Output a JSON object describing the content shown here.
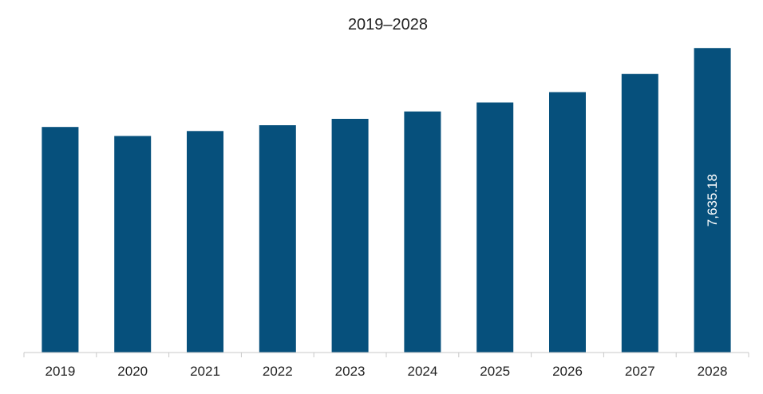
{
  "chart_data": {
    "type": "bar",
    "title": "2019–2028",
    "xlabel": "",
    "ylabel": "",
    "categories": [
      "2019",
      "2020",
      "2021",
      "2022",
      "2023",
      "2024",
      "2025",
      "2026",
      "2027",
      "2028"
    ],
    "values": [
      5656,
      5430,
      5554,
      5700,
      5860,
      6045,
      6270,
      6530,
      6985,
      7635.18
    ],
    "data_labels": [
      {
        "category": "2028",
        "text": "7,635.18"
      }
    ],
    "ylim": [
      0,
      8000
    ],
    "grid": false,
    "legend": "none",
    "colors": {
      "bar": "#06507c",
      "axis": "#c8c8c8",
      "text": "#222222",
      "data_label": "#ffffff"
    }
  }
}
